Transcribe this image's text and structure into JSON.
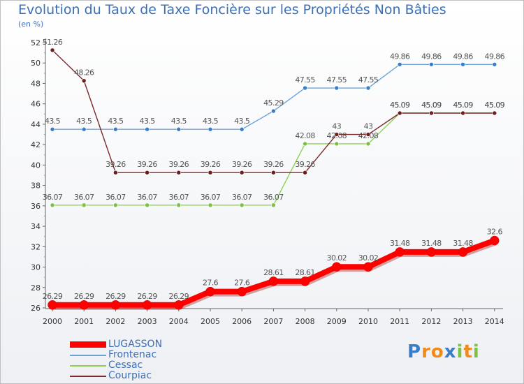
{
  "header": {
    "title": "Evolution du Taux de Taxe Foncière sur les Propriétés Non Bâties",
    "unit_label": "(en %)"
  },
  "logo": {
    "letters": [
      "P",
      "r",
      "o",
      "x",
      "i",
      "t",
      "i"
    ],
    "colors": [
      "#3a7dc8",
      "#f08a1c",
      "#f08a1c",
      "#3a7dc8",
      "#7cc142",
      "#f08a1c",
      "#7cc142"
    ]
  },
  "chart_data": {
    "type": "line",
    "title": "Evolution du Taux de Taxe Foncière sur les Propriétés Non Bâties",
    "ylabel": "(en %)",
    "xlabel": "",
    "x": [
      "2000",
      "2001",
      "2002",
      "2003",
      "2004",
      "2005",
      "2006",
      "2007",
      "2008",
      "2009",
      "2010",
      "2011",
      "2012",
      "2013",
      "2014"
    ],
    "ylim": [
      26,
      52
    ],
    "yticks": [
      26,
      28,
      30,
      32,
      34,
      36,
      38,
      40,
      42,
      44,
      46,
      48,
      50,
      52
    ],
    "grid": false,
    "legend_position": "bottom-left",
    "series": [
      {
        "name": "Frontenac",
        "color": "#6ea3d8",
        "marker_color": "#3a7dc8",
        "values": [
          43.5,
          43.5,
          43.5,
          43.5,
          43.5,
          43.5,
          43.5,
          45.29,
          47.55,
          47.55,
          47.55,
          49.86,
          49.86,
          49.86,
          49.86
        ],
        "labels": [
          "43.5",
          "43.5",
          "43.5",
          "43.5",
          "43.5",
          "43.5",
          "43.5",
          "45.29",
          "47.55",
          "47.55",
          "47.55",
          "49.86",
          "49.86",
          "49.86",
          "49.86"
        ]
      },
      {
        "name": "Cessac",
        "color": "#8fd14f",
        "marker_color": "#7cc142",
        "values": [
          36.07,
          36.07,
          36.07,
          36.07,
          36.07,
          36.07,
          36.07,
          36.07,
          42.08,
          42.08,
          42.08,
          45.09,
          45.09,
          45.09,
          45.09
        ],
        "labels": [
          "36.07",
          "36.07",
          "36.07",
          "36.07",
          "36.07",
          "36.07",
          "36.07",
          "36.07",
          "42.08",
          "42.08",
          "42.08",
          "45.09",
          "45.09",
          "45.09",
          "45.09"
        ]
      },
      {
        "name": "Courpiac",
        "color": "#7a2a2a",
        "marker_color": "#6b1f1f",
        "values": [
          51.26,
          48.26,
          39.26,
          39.26,
          39.26,
          39.26,
          39.26,
          39.26,
          39.26,
          43,
          43,
          45.09,
          45.09,
          45.09,
          45.09
        ],
        "labels": [
          "51.26",
          "48.26",
          "39.26",
          "39.26",
          "39.26",
          "39.26",
          "39.26",
          "39.26",
          "39.26",
          "43",
          "43",
          "45.09",
          "45.09",
          "45.09",
          "45.09"
        ]
      },
      {
        "name": "LUGASSON",
        "color": "#ff0000",
        "marker_color": "#ff0000",
        "values": [
          26.29,
          26.29,
          26.29,
          26.29,
          26.29,
          27.6,
          27.6,
          28.61,
          28.61,
          30.02,
          30.02,
          31.48,
          31.48,
          31.48,
          32.6
        ],
        "labels": [
          "26.29",
          "26.29",
          "26.29",
          "26.29",
          "26.29",
          "27.6",
          "27.6",
          "28.61",
          "28.61",
          "30.02",
          "30.02",
          "31.48",
          "31.48",
          "31.48",
          "32.6"
        ]
      }
    ],
    "legend": [
      {
        "name": "LUGASSON",
        "color": "#ff0000",
        "thick": true
      },
      {
        "name": "Frontenac",
        "color": "#6ea3d8",
        "thick": false
      },
      {
        "name": "Cessac",
        "color": "#8fd14f",
        "thick": false
      },
      {
        "name": "Courpiac",
        "color": "#7a2a2a",
        "thick": false
      }
    ]
  }
}
